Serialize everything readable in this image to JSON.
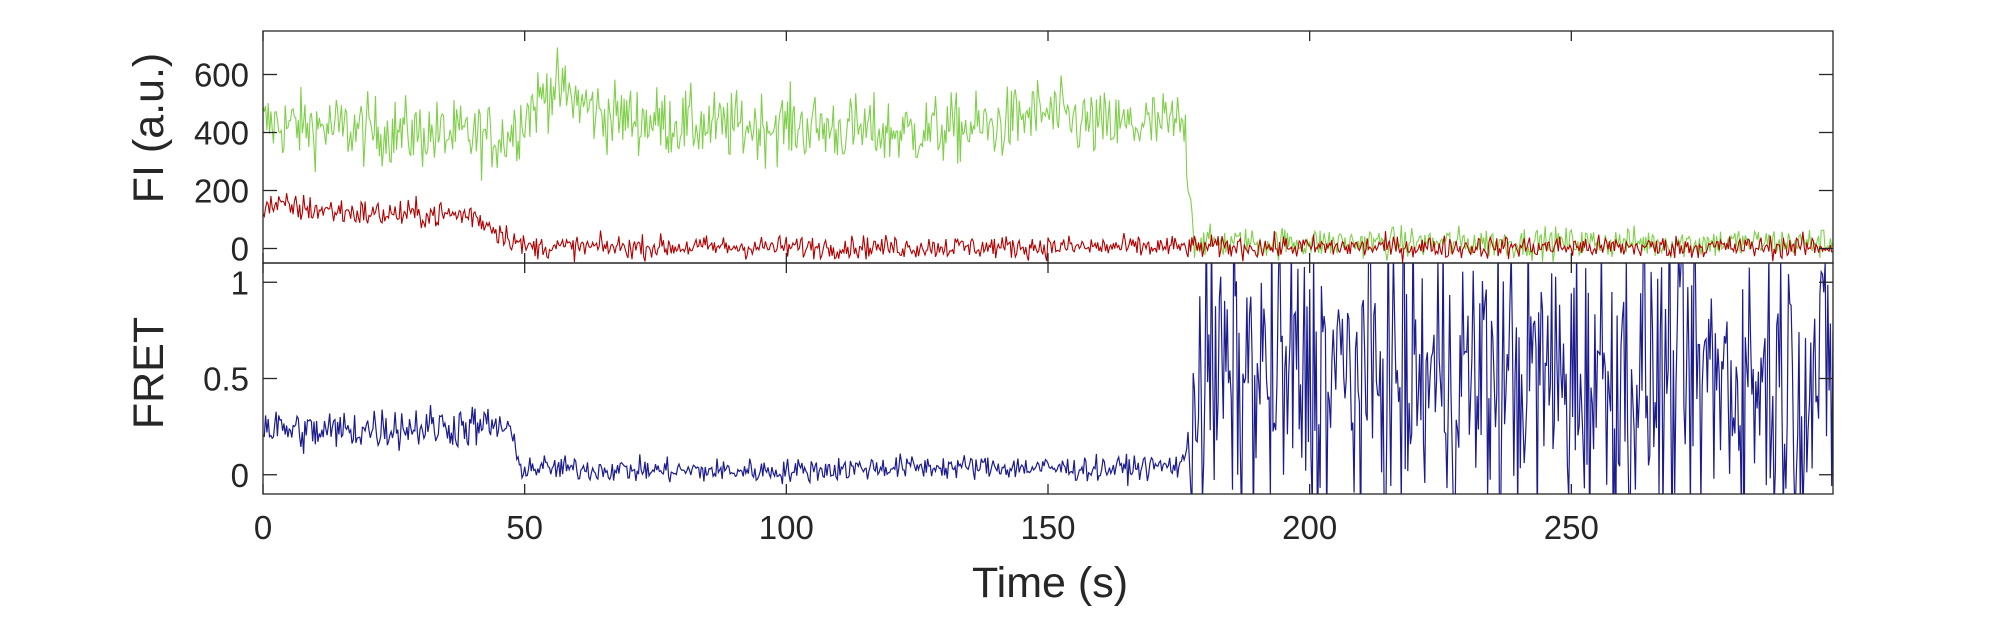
{
  "chart_data": [
    {
      "type": "line",
      "ylabel": "FI (a.u.)",
      "xlim": [
        0,
        300
      ],
      "ylim": [
        -50,
        750
      ],
      "yticks": [
        0,
        200,
        400,
        600
      ],
      "grid": false,
      "series": [
        {
          "color": "#7fcf4a",
          "x": [
            0,
            45,
            47,
            55,
            65,
            85,
            100,
            120,
            140,
            148,
            160,
            176,
            178,
            300
          ],
          "values": [
            430,
            380,
            395,
            560,
            460,
            420,
            425,
            400,
            420,
            470,
            420,
            430,
            20,
            20
          ]
        },
        {
          "color": "#b20000",
          "x": [
            0,
            20,
            40,
            47,
            50,
            100,
            176,
            178,
            300
          ],
          "values": [
            150,
            120,
            115,
            40,
            5,
            5,
            5,
            5,
            5
          ]
        }
      ]
    },
    {
      "type": "line",
      "ylabel": "FRET",
      "xlabel": "Time (s)",
      "xlim": [
        0,
        300
      ],
      "ylim": [
        -0.1,
        1.1
      ],
      "yticks": [
        0,
        0.5,
        1
      ],
      "xticks": [
        0,
        50,
        100,
        150,
        200,
        250
      ],
      "grid": false,
      "series": [
        {
          "color": "#1c1c8e",
          "x": [
            0,
            10,
            20,
            30,
            40,
            47,
            49,
            60,
            80,
            100,
            120,
            140,
            160,
            176,
            178,
            300
          ],
          "values": [
            0.25,
            0.22,
            0.24,
            0.25,
            0.25,
            0.25,
            0.04,
            0.03,
            0.02,
            0.02,
            0.04,
            0.04,
            0.03,
            0.05,
            0.5,
            0.5
          ]
        }
      ]
    }
  ]
}
